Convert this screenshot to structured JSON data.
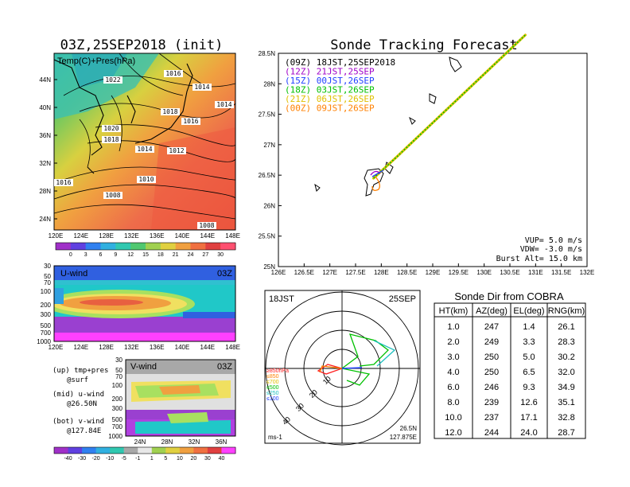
{
  "left_panel": {
    "title": "03Z,25SEP2018 (init)",
    "map": {
      "label": "Temp(C)+Pres(hPa)",
      "lat_ticks": [
        "44N",
        "40N",
        "36N",
        "32N",
        "28N",
        "24N"
      ],
      "lon_ticks": [
        "120E",
        "124E",
        "128E",
        "132E",
        "136E",
        "140E",
        "144E",
        "148E"
      ],
      "isobar_labels": [
        "1022",
        "1016",
        "1014",
        "1014",
        "1018",
        "1016",
        "1020",
        "1018",
        "1014",
        "1012",
        "1010",
        "1008",
        "1016",
        "1008"
      ],
      "temp_colorbar": [
        "0",
        "3",
        "6",
        "9",
        "12",
        "15",
        "18",
        "21",
        "24",
        "27",
        "30"
      ]
    },
    "uwind": {
      "label": "U-wind",
      "time": "03Z",
      "p_ticks": [
        "30",
        "50",
        "70",
        "100",
        "200",
        "300",
        "500",
        "700",
        "1000"
      ],
      "lon_ticks": [
        "120E",
        "124E",
        "128E",
        "132E",
        "136E",
        "140E",
        "144E",
        "148E"
      ]
    },
    "vwind": {
      "label": "V-wind",
      "time": "03Z",
      "p_ticks": [
        "30",
        "50",
        "70",
        "100",
        "200",
        "300",
        "500",
        "700",
        "1000"
      ],
      "lat_ticks": [
        "24N",
        "28N",
        "32N",
        "36N"
      ],
      "wind_colorbar": [
        "-40",
        "-30",
        "-20",
        "-10",
        "-5",
        "-1",
        "1",
        "5",
        "10",
        "20",
        "30",
        "40"
      ]
    },
    "legend": {
      "up": "(up) tmp+pres",
      "up_sub": "@surf",
      "mid": "(mid) u-wind",
      "mid_sub": "@26.50N",
      "bot": "(bot) v-wind",
      "bot_sub": "@127.84E"
    }
  },
  "tracking": {
    "title": "Sonde Tracking Forecast",
    "lat_ticks": [
      "28.5N",
      "28N",
      "27.5N",
      "27N",
      "26.5N",
      "26N",
      "25.5N",
      "25N"
    ],
    "lon_ticks": [
      "126E",
      "126.5E",
      "127E",
      "127.5E",
      "128E",
      "128.5E",
      "129E",
      "129.5E",
      "130E",
      "130.5E",
      "131E",
      "131.5E",
      "132E"
    ],
    "legend": [
      {
        "text": "(09Z) 18JST,25SEP2018",
        "color": "#000000"
      },
      {
        "text": "(12Z) 21JST,25SEP",
        "color": "#a000c8"
      },
      {
        "text": "(15Z) 00JST,26SEP",
        "color": "#2040ff"
      },
      {
        "text": "(18Z) 03JST,26SEP",
        "color": "#00c000"
      },
      {
        "text": "(21Z) 06JST,26SEP",
        "color": "#e0c000"
      },
      {
        "text": "(00Z) 09JST,26SEP",
        "color": "#ff8000"
      }
    ],
    "params": [
      "VUP=  5.0 m/s",
      "VDW= -3.0 m/s",
      "Burst Alt= 15.0 km"
    ]
  },
  "hodograph": {
    "time": "18JST",
    "date": "25SEP",
    "ring_labels": [
      "10",
      "20",
      "30",
      "40"
    ],
    "pressure_legend": [
      {
        "text": "≥850hPa",
        "color": "#ff2020"
      },
      {
        "text": "≤850",
        "color": "#ff8000"
      },
      {
        "text": "≤700",
        "color": "#e0c000"
      },
      {
        "text": "≤500",
        "color": "#00c000"
      },
      {
        "text": "≤250",
        "color": "#20c0c0"
      },
      {
        "text": "≤100",
        "color": "#2040ff"
      }
    ],
    "units": "ms-1",
    "loc_lat": "26.5N",
    "loc_lon": "127.875E"
  },
  "table": {
    "title": "Sonde Dir from COBRA",
    "headers": [
      "HT(km)",
      "AZ(deg)",
      "EL(deg)",
      "RNG(km)"
    ],
    "rows": [
      [
        "1.0",
        "247",
        "1.4",
        "26.1"
      ],
      [
        "2.0",
        "249",
        "3.3",
        "28.3"
      ],
      [
        "3.0",
        "250",
        "5.0",
        "30.2"
      ],
      [
        "4.0",
        "250",
        "6.5",
        "32.0"
      ],
      [
        "6.0",
        "246",
        "9.3",
        "34.9"
      ],
      [
        "8.0",
        "239",
        "12.6",
        "35.1"
      ],
      [
        "10.0",
        "237",
        "17.1",
        "32.8"
      ],
      [
        "12.0",
        "244",
        "24.0",
        "28.7"
      ]
    ]
  },
  "chart_data": {
    "type": "table",
    "title": "Sonde Dir from COBRA",
    "columns": [
      "HT(km)",
      "AZ(deg)",
      "EL(deg)",
      "RNG(km)"
    ],
    "rows": [
      [
        1.0,
        247,
        1.4,
        26.1
      ],
      [
        2.0,
        249,
        3.3,
        28.3
      ],
      [
        3.0,
        250,
        5.0,
        30.2
      ],
      [
        4.0,
        250,
        6.5,
        32.0
      ],
      [
        6.0,
        246,
        9.3,
        34.9
      ],
      [
        8.0,
        239,
        12.6,
        35.1
      ],
      [
        10.0,
        237,
        17.1,
        32.8
      ],
      [
        12.0,
        244,
        24.0,
        28.7
      ]
    ],
    "track_xlim": [
      126,
      132
    ],
    "track_ylim": [
      25,
      28.5
    ],
    "track_points": [
      [
        127.85,
        26.45
      ],
      [
        128.3,
        26.8
      ],
      [
        128.8,
        27.2
      ],
      [
        129.3,
        27.6
      ],
      [
        129.8,
        28.0
      ],
      [
        130.3,
        28.4
      ],
      [
        130.8,
        28.8
      ]
    ]
  }
}
